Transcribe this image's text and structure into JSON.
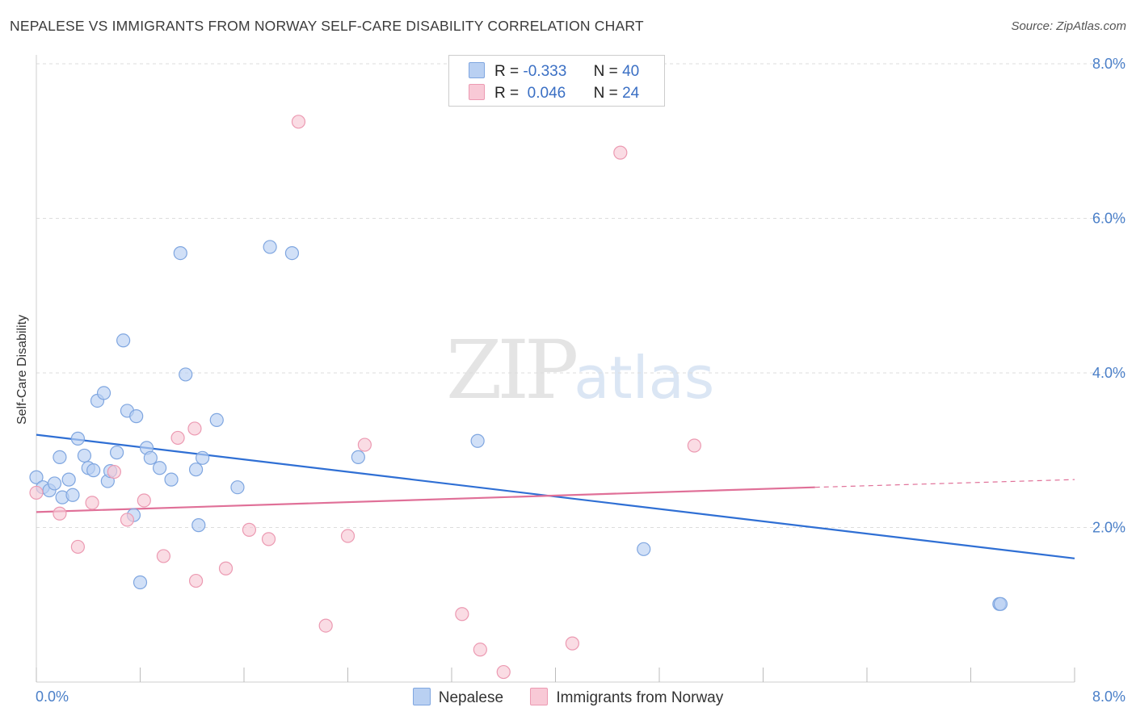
{
  "header": {
    "title": "NEPALESE VS IMMIGRANTS FROM NORWAY SELF-CARE DISABILITY CORRELATION CHART",
    "source": "Source: ZipAtlas.com"
  },
  "watermark": {
    "zip": "ZIP",
    "atlas": "atlas"
  },
  "legend": {
    "rows": [
      {
        "r_label": "R =",
        "r_value": "-0.333",
        "n_label": "N =",
        "n_value": "40"
      },
      {
        "r_label": "R =",
        "r_value": " 0.046",
        "n_label": "N =",
        "n_value": "24"
      }
    ]
  },
  "bottom_legend": {
    "series1": "Nepalese",
    "series2": "Immigrants from Norway"
  },
  "colors": {
    "blue_fill": "#b9d0f2",
    "blue_stroke": "#7fa6e0",
    "blue_line": "#2f6fd4",
    "pink_fill": "#f8c9d6",
    "pink_stroke": "#ec9ab2",
    "pink_line": "#e07098",
    "tick_text": "#4a7fc8",
    "grid": "#dddddd"
  },
  "chart_data": {
    "type": "scatter",
    "title": "NEPALESE VS IMMIGRANTS FROM NORWAY SELF-CARE DISABILITY CORRELATION CHART",
    "xlabel": "",
    "ylabel": "Self-Care Disability",
    "xlim": [
      0,
      8
    ],
    "ylim": [
      0,
      8
    ],
    "x_tick_labels": [
      "0.0%",
      "8.0%"
    ],
    "y_ticks": [
      2,
      4,
      6,
      8
    ],
    "y_tick_labels": [
      "2.0%",
      "4.0%",
      "6.0%",
      "8.0%"
    ],
    "series": [
      {
        "name": "Nepalese",
        "color": "blue",
        "points": [
          [
            0.0,
            2.65
          ],
          [
            0.05,
            2.52
          ],
          [
            0.1,
            2.48
          ],
          [
            0.14,
            2.57
          ],
          [
            0.18,
            2.91
          ],
          [
            0.2,
            2.39
          ],
          [
            0.25,
            2.62
          ],
          [
            0.28,
            2.42
          ],
          [
            0.32,
            3.15
          ],
          [
            0.37,
            2.93
          ],
          [
            0.4,
            2.77
          ],
          [
            0.44,
            2.74
          ],
          [
            0.47,
            3.64
          ],
          [
            0.52,
            3.74
          ],
          [
            0.55,
            2.6
          ],
          [
            0.57,
            2.73
          ],
          [
            0.62,
            2.97
          ],
          [
            0.67,
            4.42
          ],
          [
            0.7,
            3.51
          ],
          [
            0.75,
            2.16
          ],
          [
            0.77,
            3.44
          ],
          [
            0.8,
            1.29
          ],
          [
            0.85,
            3.03
          ],
          [
            0.88,
            2.9
          ],
          [
            0.95,
            2.77
          ],
          [
            1.04,
            2.62
          ],
          [
            1.11,
            5.55
          ],
          [
            1.15,
            3.98
          ],
          [
            1.23,
            2.75
          ],
          [
            1.25,
            2.03
          ],
          [
            1.28,
            2.9
          ],
          [
            1.39,
            3.39
          ],
          [
            1.55,
            2.52
          ],
          [
            1.8,
            5.63
          ],
          [
            1.97,
            5.55
          ],
          [
            2.48,
            2.91
          ],
          [
            3.4,
            3.12
          ],
          [
            4.68,
            1.72
          ],
          [
            7.42,
            1.01
          ],
          [
            7.43,
            1.01
          ]
        ]
      },
      {
        "name": "Immigrants from Norway",
        "color": "pink",
        "points": [
          [
            0.0,
            2.45
          ],
          [
            0.18,
            2.18
          ],
          [
            0.32,
            1.75
          ],
          [
            0.43,
            2.32
          ],
          [
            0.6,
            2.72
          ],
          [
            0.7,
            2.1
          ],
          [
            0.83,
            2.35
          ],
          [
            0.98,
            1.63
          ],
          [
            1.09,
            3.16
          ],
          [
            1.22,
            3.28
          ],
          [
            1.23,
            1.31
          ],
          [
            1.46,
            1.47
          ],
          [
            1.64,
            1.97
          ],
          [
            1.79,
            1.85
          ],
          [
            2.02,
            7.25
          ],
          [
            2.23,
            0.73
          ],
          [
            2.4,
            1.89
          ],
          [
            2.53,
            3.07
          ],
          [
            3.28,
            0.88
          ],
          [
            3.42,
            0.42
          ],
          [
            3.6,
            0.13
          ],
          [
            4.13,
            0.5
          ],
          [
            4.5,
            6.85
          ],
          [
            5.07,
            3.06
          ]
        ]
      }
    ],
    "trendlines": [
      {
        "series": "Nepalese",
        "x": [
          0,
          8
        ],
        "y": [
          3.2,
          1.6
        ]
      },
      {
        "series": "Immigrants from Norway",
        "x": [
          0,
          6.0
        ],
        "y": [
          2.2,
          2.52
        ],
        "dashed_extension_to": [
          8,
          2.62
        ]
      }
    ]
  }
}
